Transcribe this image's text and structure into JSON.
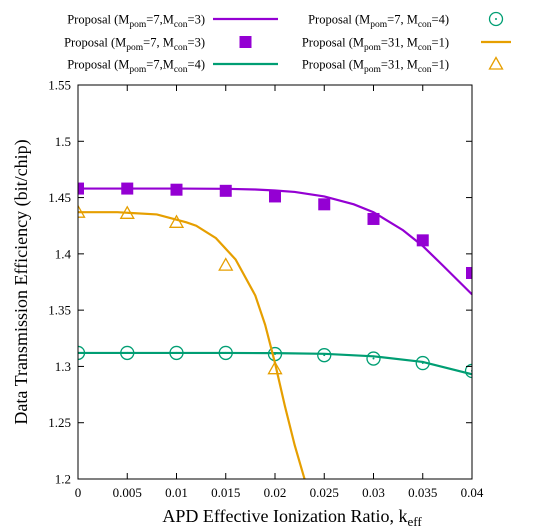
{
  "chart_data": {
    "type": "line",
    "xlabel": "APD Effective Ionization Ratio, k",
    "xlabel_sub": "eff",
    "ylabel": "Data Transmission Efficiency (bit/chip)",
    "xlim": [
      0,
      0.04
    ],
    "ylim": [
      1.2,
      1.55
    ],
    "xticks": [
      "0",
      "0.005",
      "0.01",
      "0.015",
      "0.02",
      "0.025",
      "0.03",
      "0.035",
      "0.04"
    ],
    "yticks": [
      "1.2",
      "1.25",
      "1.3",
      "1.35",
      "1.4",
      "1.45",
      "1.5",
      "1.55"
    ],
    "grid": false,
    "legend_position": "top",
    "series": [
      {
        "kind": "line",
        "color": "#9400d3",
        "legend": [
          "Proposal (M",
          "pom",
          "=7,M",
          "con",
          "=3)"
        ],
        "x": [
          0,
          0.005,
          0.01,
          0.015,
          0.018,
          0.02,
          0.022,
          0.025,
          0.028,
          0.03,
          0.033,
          0.035,
          0.037,
          0.04
        ],
        "y": [
          1.458,
          1.458,
          1.458,
          1.4578,
          1.4572,
          1.4563,
          1.455,
          1.451,
          1.444,
          1.437,
          1.421,
          1.407,
          1.39,
          1.364
        ]
      },
      {
        "kind": "marker",
        "marker": "square",
        "color": "#9400d3",
        "legend": [
          "Proposal (M",
          "pom",
          "=7, M",
          "con",
          "=3)"
        ],
        "x": [
          0,
          0.005,
          0.01,
          0.015,
          0.02,
          0.025,
          0.03,
          0.035,
          0.04
        ],
        "y": [
          1.458,
          1.458,
          1.457,
          1.456,
          1.451,
          1.444,
          1.431,
          1.412,
          1.383
        ]
      },
      {
        "kind": "line",
        "color": "#009e73",
        "legend": [
          "Proposal (M",
          "pom",
          "=7,M",
          "con",
          "=4)"
        ],
        "x": [
          0,
          0.005,
          0.01,
          0.015,
          0.02,
          0.025,
          0.03,
          0.035,
          0.04
        ],
        "y": [
          1.312,
          1.312,
          1.312,
          1.312,
          1.3118,
          1.3112,
          1.309,
          1.304,
          1.293
        ]
      },
      {
        "kind": "marker",
        "marker": "circle",
        "color": "#009e73",
        "legend": [
          "Proposal (M",
          "pom",
          "=7, M",
          "con",
          "=4)"
        ],
        "x": [
          0,
          0.005,
          0.01,
          0.015,
          0.02,
          0.025,
          0.03,
          0.035,
          0.04
        ],
        "y": [
          1.312,
          1.312,
          1.312,
          1.312,
          1.311,
          1.31,
          1.307,
          1.303,
          1.296
        ]
      },
      {
        "kind": "line",
        "color": "#e69f00",
        "legend": [
          "Proposal (M",
          "pom",
          "=31, M",
          "con",
          "=1)"
        ],
        "x": [
          0,
          0.004,
          0.008,
          0.011,
          0.012,
          0.014,
          0.016,
          0.018,
          0.019,
          0.02,
          0.021,
          0.022,
          0.023
        ],
        "y": [
          1.437,
          1.437,
          1.435,
          1.428,
          1.425,
          1.414,
          1.395,
          1.363,
          1.337,
          1.303,
          1.265,
          1.23,
          1.2
        ]
      },
      {
        "kind": "marker",
        "marker": "triangle",
        "color": "#e69f00",
        "legend": [
          "Proposal  (M",
          "pom",
          "=31, M",
          "con",
          "=1)"
        ],
        "x": [
          0,
          0.005,
          0.01,
          0.015,
          0.02
        ],
        "y": [
          1.437,
          1.436,
          1.428,
          1.39,
          1.298
        ]
      }
    ],
    "legend_order": [
      0,
      3,
      1,
      4,
      2,
      5
    ]
  }
}
